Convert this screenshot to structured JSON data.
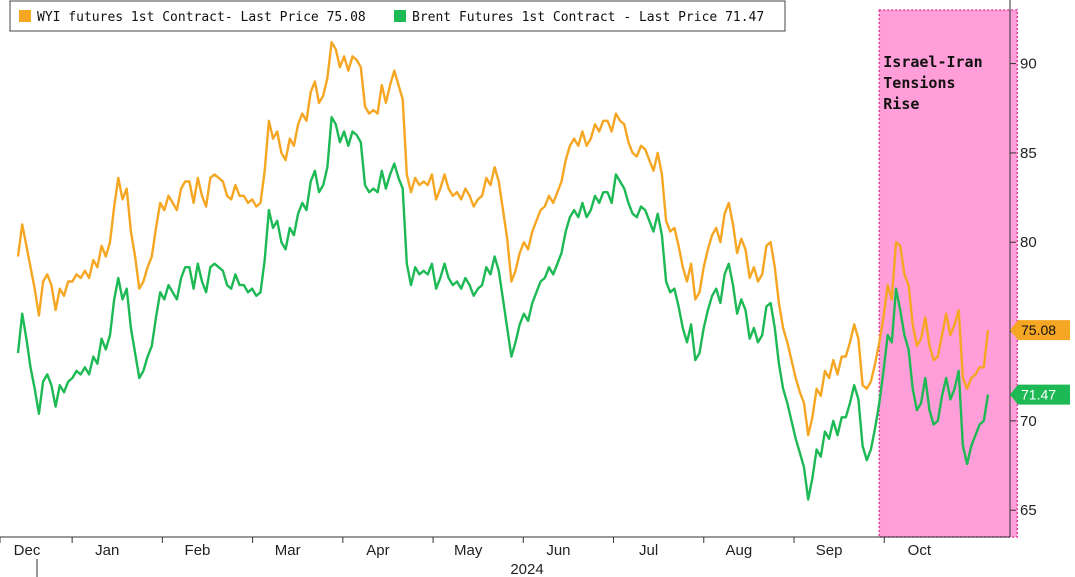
{
  "chart_data": {
    "type": "line",
    "legend": {
      "placement": "top-left",
      "entries": [
        {
          "label": "WYI futures 1st Contract- Last Price 75.08",
          "color": "#f5a623"
        },
        {
          "label": "Brent Futures 1st Contract - Last Price 71.47",
          "color": "#1db954"
        }
      ]
    },
    "x_labels": [
      "Dec",
      "Jan",
      "Feb",
      "Mar",
      "Apr",
      "May",
      "Jun",
      "Jul",
      "Aug",
      "Sep",
      "Oct"
    ],
    "x_year_label": "2024",
    "y_ticks": [
      65,
      70,
      75,
      80,
      85,
      90
    ],
    "y_tick_labels": [
      "65",
      "70",
      "75",
      "80",
      "85",
      "90"
    ],
    "ylim": [
      63.5,
      93
    ],
    "y_axis_side": "right",
    "series": [
      {
        "name": "WYI futures 1st Contract- Last Price 75.08",
        "color": "#f5a623",
        "last_value_label": "75.08",
        "values": [
          79.2,
          81.0,
          79.8,
          78.6,
          77.4,
          75.9,
          77.8,
          78.2,
          77.6,
          76.2,
          77.4,
          77.0,
          77.8,
          77.8,
          78.2,
          78.0,
          78.4,
          78.0,
          79.0,
          78.6,
          79.8,
          79.2,
          80.0,
          82.0,
          83.6,
          82.4,
          83.0,
          80.6,
          79.2,
          77.4,
          77.8,
          78.6,
          79.2,
          80.8,
          82.2,
          81.8,
          82.6,
          82.2,
          81.8,
          83.0,
          83.4,
          83.4,
          82.2,
          83.6,
          82.6,
          82.0,
          83.6,
          83.8,
          83.6,
          83.4,
          82.6,
          82.4,
          83.2,
          82.6,
          82.6,
          82.2,
          82.4,
          82.0,
          82.2,
          84.0,
          86.8,
          85.8,
          86.2,
          85.0,
          84.6,
          85.8,
          85.4,
          86.6,
          87.2,
          86.8,
          88.4,
          89.0,
          87.8,
          88.2,
          89.2,
          91.2,
          90.8,
          89.8,
          90.4,
          89.6,
          90.4,
          90.2,
          89.8,
          87.6,
          87.2,
          87.4,
          87.2,
          88.8,
          87.8,
          88.8,
          89.6,
          88.8,
          88.0,
          83.8,
          82.8,
          83.6,
          83.2,
          83.4,
          83.2,
          83.8,
          82.4,
          83.0,
          83.8,
          83.0,
          82.6,
          82.8,
          82.4,
          83.0,
          82.6,
          82.0,
          82.4,
          82.6,
          83.6,
          83.2,
          84.2,
          83.4,
          81.8,
          80.2,
          77.8,
          78.4,
          79.4,
          80.0,
          79.6,
          80.6,
          81.2,
          81.8,
          82.0,
          82.6,
          82.2,
          82.8,
          83.4,
          84.6,
          85.4,
          85.8,
          85.4,
          86.2,
          85.4,
          85.8,
          86.6,
          86.2,
          86.8,
          86.8,
          86.2,
          87.2,
          86.8,
          86.6,
          85.6,
          85.0,
          84.8,
          85.4,
          85.2,
          84.6,
          84.0,
          85.0,
          83.8,
          81.2,
          80.6,
          80.8,
          79.8,
          78.6,
          77.8,
          78.8,
          76.8,
          77.2,
          78.6,
          79.6,
          80.4,
          80.8,
          80.0,
          81.6,
          82.2,
          81.0,
          79.4,
          80.2,
          79.6,
          78.0,
          78.6,
          77.8,
          78.2,
          79.8,
          80.0,
          78.6,
          76.6,
          75.2,
          74.4,
          73.4,
          72.4,
          71.6,
          71.0,
          69.2,
          70.2,
          71.8,
          71.4,
          72.8,
          72.4,
          73.4,
          72.6,
          73.6,
          73.6,
          74.4,
          75.4,
          74.6,
          72.0,
          71.8,
          72.2,
          73.2,
          74.4,
          75.8,
          77.6,
          76.8,
          80.0,
          79.8,
          78.2,
          77.6,
          75.4,
          74.2,
          74.6,
          75.8,
          74.2,
          73.4,
          73.6,
          74.8,
          76.0,
          74.8,
          75.4,
          76.2,
          72.4,
          71.8,
          72.4,
          72.6,
          73.0,
          73.0,
          75.08
        ]
      },
      {
        "name": "Brent Futures 1st Contract - Last Price 71.47",
        "color": "#1db954",
        "last_value_label": "71.47",
        "values": [
          73.8,
          76.0,
          74.6,
          73.0,
          71.8,
          70.4,
          72.2,
          72.6,
          72.0,
          70.8,
          72.0,
          71.6,
          72.2,
          72.4,
          72.8,
          72.6,
          73.0,
          72.6,
          73.6,
          73.2,
          74.6,
          74.0,
          74.8,
          76.8,
          78.0,
          76.8,
          77.4,
          75.2,
          73.8,
          72.4,
          72.8,
          73.6,
          74.2,
          75.8,
          77.2,
          76.8,
          77.6,
          77.2,
          76.8,
          78.0,
          78.6,
          78.6,
          77.4,
          78.8,
          77.8,
          77.2,
          78.6,
          78.8,
          78.6,
          78.4,
          77.6,
          77.4,
          78.2,
          77.6,
          77.6,
          77.2,
          77.4,
          77.0,
          77.2,
          79.0,
          81.8,
          80.8,
          81.2,
          80.0,
          79.6,
          80.8,
          80.4,
          81.6,
          82.2,
          81.8,
          83.4,
          84.0,
          82.8,
          83.2,
          84.2,
          87.0,
          86.6,
          85.6,
          86.2,
          85.4,
          86.2,
          86.0,
          85.6,
          83.2,
          82.8,
          83.0,
          82.8,
          84.0,
          83.0,
          83.8,
          84.4,
          83.6,
          83.0,
          78.8,
          77.6,
          78.6,
          78.2,
          78.4,
          78.2,
          78.8,
          77.4,
          78.0,
          78.8,
          78.0,
          77.6,
          77.8,
          77.4,
          78.0,
          77.6,
          77.0,
          77.4,
          77.6,
          78.6,
          78.2,
          79.2,
          78.4,
          76.8,
          75.2,
          73.6,
          74.4,
          75.4,
          76.0,
          75.6,
          76.6,
          77.2,
          77.8,
          78.0,
          78.6,
          78.2,
          78.8,
          79.4,
          80.6,
          81.4,
          81.8,
          81.4,
          82.2,
          81.4,
          81.8,
          82.6,
          82.2,
          82.8,
          82.8,
          82.2,
          83.8,
          83.4,
          83.0,
          82.2,
          81.6,
          81.4,
          82.0,
          81.8,
          81.2,
          80.6,
          81.6,
          80.4,
          77.8,
          77.2,
          77.4,
          76.4,
          75.2,
          74.4,
          75.4,
          73.4,
          73.8,
          75.2,
          76.2,
          77.0,
          77.4,
          76.6,
          78.2,
          78.8,
          77.6,
          76.0,
          76.8,
          76.2,
          74.6,
          75.2,
          74.4,
          74.8,
          76.4,
          76.6,
          75.2,
          73.2,
          71.8,
          71.0,
          70.0,
          69.0,
          68.2,
          67.4,
          65.6,
          66.8,
          68.4,
          68.0,
          69.4,
          69.0,
          70.0,
          69.2,
          70.2,
          70.2,
          71.0,
          72.0,
          71.2,
          68.6,
          67.8,
          68.4,
          69.6,
          71.0,
          72.8,
          74.8,
          74.4,
          77.4,
          76.2,
          74.8,
          74.0,
          71.8,
          70.6,
          71.0,
          72.4,
          70.6,
          69.8,
          70.0,
          71.4,
          72.4,
          71.2,
          71.8,
          72.8,
          68.6,
          67.6,
          68.6,
          69.2,
          69.8,
          70.0,
          71.47
        ]
      }
    ],
    "highlight": {
      "label_lines": [
        "Israel-Iran",
        "Tensions",
        "Rise"
      ],
      "fill_color": "#ff9ed8",
      "border_color": "#e040a0",
      "start_index": 206,
      "end_index": 239
    }
  }
}
